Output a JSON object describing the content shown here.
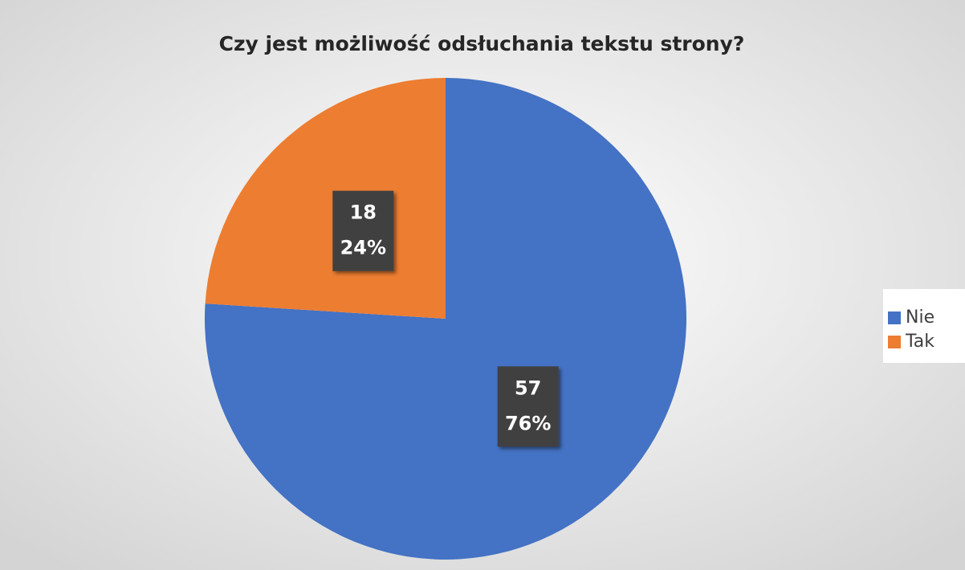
{
  "chart_data": {
    "type": "pie",
    "title": "Czy jest możliwość odsłuchania tekstu strony?",
    "categories": [
      "Nie",
      "Tak"
    ],
    "values": [
      57,
      18
    ],
    "percentages": [
      76,
      24
    ],
    "percentage_labels": [
      "76%",
      "24%"
    ],
    "colors": [
      "#4472c4",
      "#ed7d31"
    ],
    "legend": "right"
  }
}
